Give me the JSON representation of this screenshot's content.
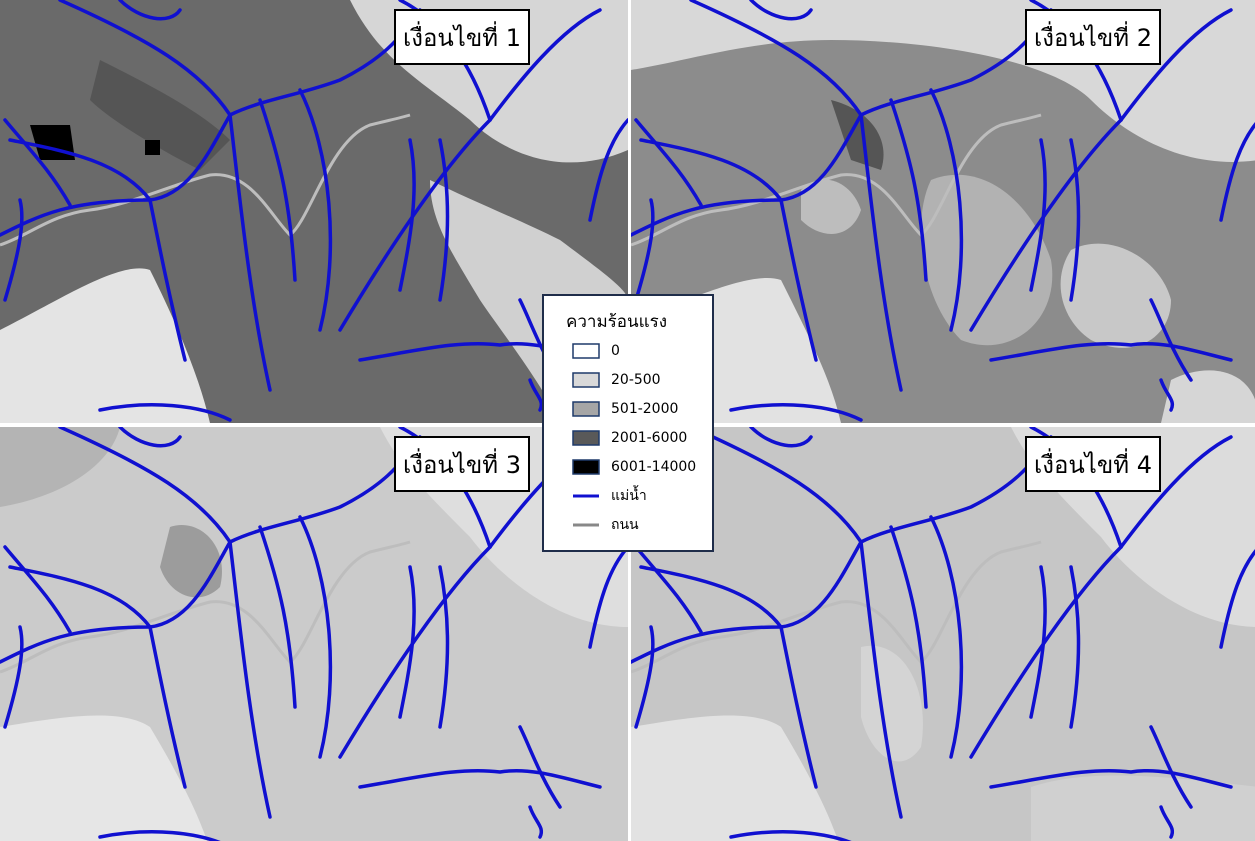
{
  "panels": [
    {
      "label": "เงื่อนไขที่ 1"
    },
    {
      "label": "เงื่อนไขที่ 2"
    },
    {
      "label": "เงื่อนไขที่ 3"
    },
    {
      "label": "เงื่อนไขที่ 4"
    }
  ],
  "legend": {
    "title": "ความร้อนแรง",
    "classes": [
      {
        "label": "0",
        "color": "#ffffff"
      },
      {
        "label": "20-500",
        "color": "#d9d9d9"
      },
      {
        "label": "501-2000",
        "color": "#a6a6a6"
      },
      {
        "label": "2001-6000",
        "color": "#595959"
      },
      {
        "label": "6001-14000",
        "color": "#000000"
      }
    ],
    "lines": [
      {
        "label": "แม่น้ำ",
        "color": "#1010d0"
      },
      {
        "label": "ถนน",
        "color": "#888888"
      }
    ]
  }
}
